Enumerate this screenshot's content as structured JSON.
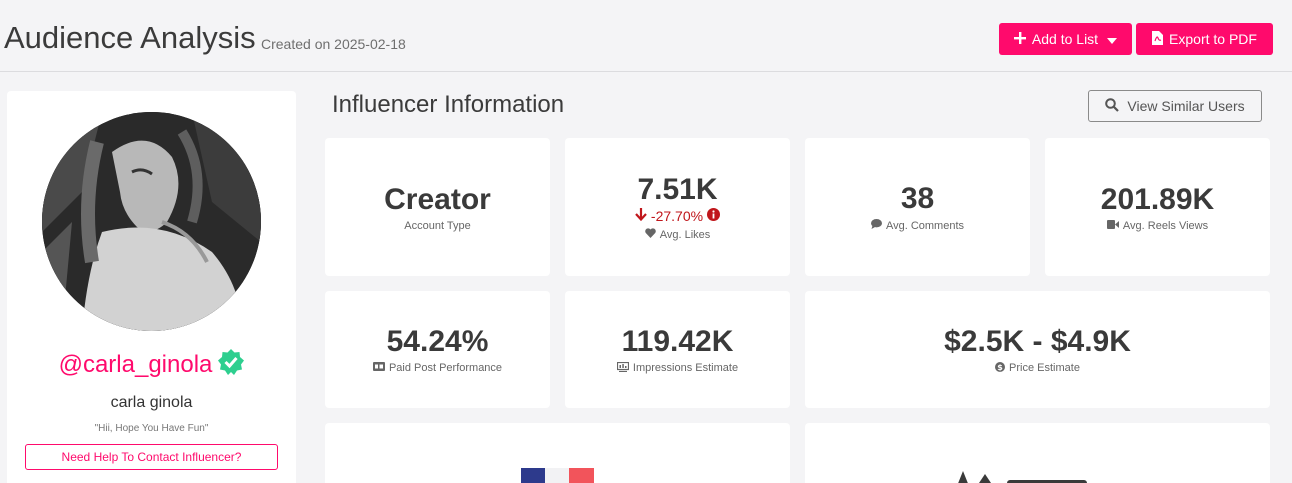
{
  "header": {
    "title": "Audience Analysis",
    "subtitle": "Created on 2025-02-18",
    "add_to_list_label": "Add to List",
    "export_label": "Export to PDF"
  },
  "profile": {
    "handle": "@carla_ginola",
    "name": "carla ginola",
    "bio": "\"Hii, Hope You Have Fun\"",
    "help_button": "Need Help To Contact Influencer?"
  },
  "section": {
    "title": "Influencer Information",
    "similar_button": "View Similar Users"
  },
  "stats": {
    "account_type": {
      "value": "Creator",
      "label": "Account Type"
    },
    "avg_likes": {
      "value": "7.51K",
      "change": "-27.70%",
      "label": "Avg. Likes"
    },
    "avg_comments": {
      "value": "38",
      "label": "Avg. Comments"
    },
    "avg_reels_views": {
      "value": "201.89K",
      "label": "Avg. Reels Views"
    },
    "paid_post": {
      "value": "54.24%",
      "label": "Paid Post Performance"
    },
    "impressions": {
      "value": "119.42K",
      "label": "Impressions Estimate"
    },
    "price": {
      "value": "$2.5K - $4.9K",
      "label": "Price Estimate"
    }
  },
  "colors": {
    "accent": "#ff0a6c",
    "negative": "#c0161b",
    "verified": "#2ecf8f"
  },
  "icons": [
    "plus-icon",
    "caret-down-icon",
    "pdf-icon",
    "search-icon",
    "verified-badge-icon",
    "arrow-down-icon",
    "info-icon",
    "heart-icon",
    "comment-icon",
    "video-icon",
    "ad-icon",
    "impressions-icon",
    "dollar-icon",
    "france-flag-icon"
  ]
}
